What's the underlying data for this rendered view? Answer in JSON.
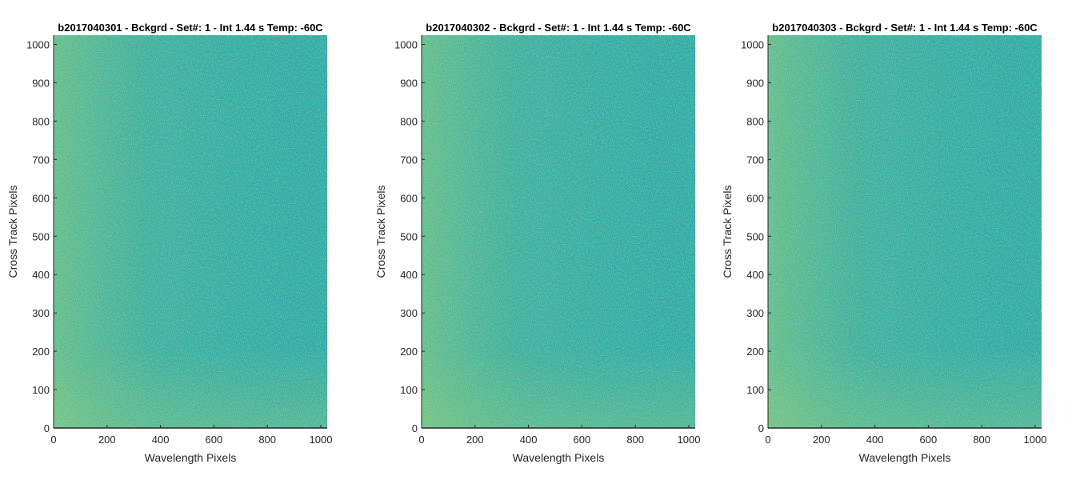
{
  "chart_data": [
    {
      "type": "heatmap",
      "title": "b2017040301 - Bckgrd - Set#: 1 - Int 1.44 s Temp: -60C",
      "xlabel": "Wavelength Pixels",
      "ylabel": "Cross Track Pixels",
      "xlim": [
        0,
        1024
      ],
      "ylim": [
        0,
        1024
      ],
      "xticks": [
        0,
        200,
        400,
        600,
        800,
        1000
      ],
      "yticks": [
        0,
        100,
        200,
        300,
        400,
        500,
        600,
        700,
        800,
        900,
        1000
      ],
      "grid": false,
      "colormap": "parula",
      "colors": {
        "low": "#1fa4a6",
        "high": "#7fc97a"
      }
    },
    {
      "type": "heatmap",
      "title": "b2017040302 - Bckgrd - Set#: 1 - Int 1.44 s Temp: -60C",
      "xlabel": "Wavelength Pixels",
      "ylabel": "Cross Track Pixels",
      "xlim": [
        0,
        1024
      ],
      "ylim": [
        0,
        1024
      ],
      "xticks": [
        0,
        200,
        400,
        600,
        800,
        1000
      ],
      "yticks": [
        0,
        100,
        200,
        300,
        400,
        500,
        600,
        700,
        800,
        900,
        1000
      ],
      "grid": false,
      "colormap": "parula",
      "colors": {
        "low": "#1fa4a6",
        "high": "#7fc97a"
      }
    },
    {
      "type": "heatmap",
      "title": "b2017040303 - Bckgrd - Set#: 1 - Int 1.44 s Temp: -60C",
      "xlabel": "Wavelength Pixels",
      "ylabel": "Cross Track Pixels",
      "xlim": [
        0,
        1024
      ],
      "ylim": [
        0,
        1024
      ],
      "xticks": [
        0,
        200,
        400,
        600,
        800,
        1000
      ],
      "yticks": [
        0,
        100,
        200,
        300,
        400,
        500,
        600,
        700,
        800,
        900,
        1000
      ],
      "grid": false,
      "colormap": "parula",
      "colors": {
        "low": "#1fa4a6",
        "high": "#7fc97a"
      }
    }
  ]
}
